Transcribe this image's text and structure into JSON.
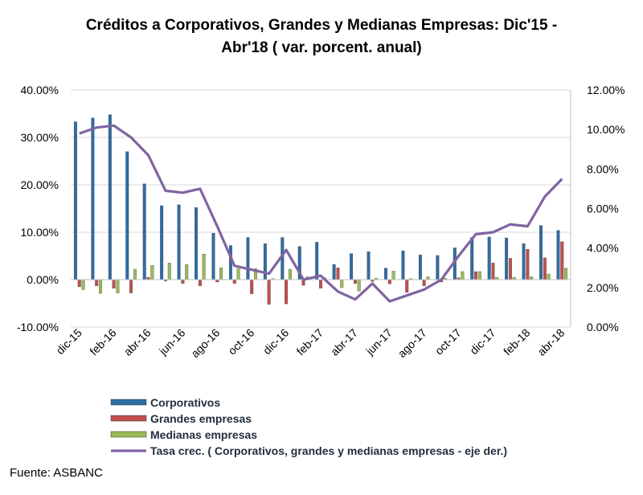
{
  "chart_data": {
    "type": "bar",
    "title_line1": "Créditos a Corporativos, Grandes y Medianas Empresas: Dic'15 -",
    "title_line2": "Abr'18  ( var. porcent. anual)",
    "categories": [
      "dic-15",
      "ene-16",
      "feb-16",
      "mar-16",
      "abr-16",
      "may-16",
      "jun-16",
      "jul-16",
      "ago-16",
      "sep-16",
      "oct-16",
      "nov-16",
      "dic-16",
      "ene-17",
      "feb-17",
      "mar-17",
      "abr-17",
      "may-17",
      "jun-17",
      "jul-17",
      "ago-17",
      "sep-17",
      "oct-17",
      "nov-17",
      "dic-17",
      "ene-18",
      "feb-18",
      "mar-18",
      "abr-18"
    ],
    "x_tick_labels": [
      "dic-15",
      "feb-16",
      "abr-16",
      "jun-16",
      "ago-16",
      "oct-16",
      "dic-16",
      "feb-17",
      "abr-17",
      "jun-17",
      "ago-17",
      "oct-17",
      "dic-17",
      "feb-18",
      "abr-18"
    ],
    "y_left": {
      "ticks": [
        "40.00%",
        "30.00%",
        "20.00%",
        "10.00%",
        "0.00%",
        "-10.00%"
      ],
      "min": -10,
      "max": 40
    },
    "y_right": {
      "ticks": [
        "12.00%",
        "10.00%",
        "8.00%",
        "6.00%",
        "4.00%",
        "2.00%",
        "0.00%"
      ],
      "min": 0,
      "max": 12
    },
    "grid": "horizontal",
    "legend_position": "bottom",
    "series": [
      {
        "name": "Corporativos",
        "axis": "left",
        "color": "#2e6da4",
        "values": [
          33.3,
          34.1,
          34.8,
          27.0,
          20.2,
          15.6,
          15.8,
          15.2,
          9.8,
          7.2,
          8.9,
          7.6,
          8.9,
          7.0,
          7.9,
          3.2,
          5.5,
          5.9,
          2.4,
          6.1,
          5.2,
          5.1,
          6.7,
          8.9,
          9.0,
          8.8,
          7.6,
          11.4,
          10.4
        ]
      },
      {
        "name": "Grandes empresas",
        "axis": "left",
        "color": "#c0504d",
        "values": [
          -1.5,
          -1.3,
          -1.8,
          -2.8,
          0.5,
          -0.3,
          -0.8,
          -1.3,
          -0.5,
          -0.8,
          -3.0,
          -5.2,
          -5.1,
          -1.2,
          -1.8,
          2.5,
          -0.8,
          -0.4,
          -0.9,
          -2.7,
          -1.3,
          -0.5,
          0.4,
          1.7,
          3.5,
          4.5,
          6.4,
          4.6,
          8.0
        ]
      },
      {
        "name": "Medianas empresas",
        "axis": "left",
        "color": "#9bbb59",
        "values": [
          -2.1,
          -2.9,
          -2.8,
          2.2,
          3.0,
          3.5,
          3.2,
          5.4,
          2.5,
          2.3,
          2.3,
          0.2,
          2.2,
          0.6,
          0.4,
          -1.7,
          -2.4,
          0.3,
          1.8,
          0.2,
          0.6,
          0.3,
          1.7,
          1.7,
          0.5,
          0.5,
          0.6,
          1.2,
          2.4
        ]
      },
      {
        "name": "Tasa crec. ( Corporativos, grandes y medianas empresas - eje der.)",
        "axis": "right",
        "type": "line",
        "color": "#8064a2",
        "values": [
          9.8,
          10.1,
          10.2,
          9.6,
          8.7,
          6.9,
          6.8,
          7.0,
          5.1,
          3.1,
          2.9,
          2.7,
          3.9,
          2.4,
          2.6,
          1.8,
          1.4,
          2.2,
          1.3,
          1.6,
          1.9,
          2.4,
          3.6,
          4.7,
          4.8,
          5.2,
          5.1,
          6.6,
          7.5
        ]
      }
    ]
  },
  "source": "Fuente: ASBANC"
}
